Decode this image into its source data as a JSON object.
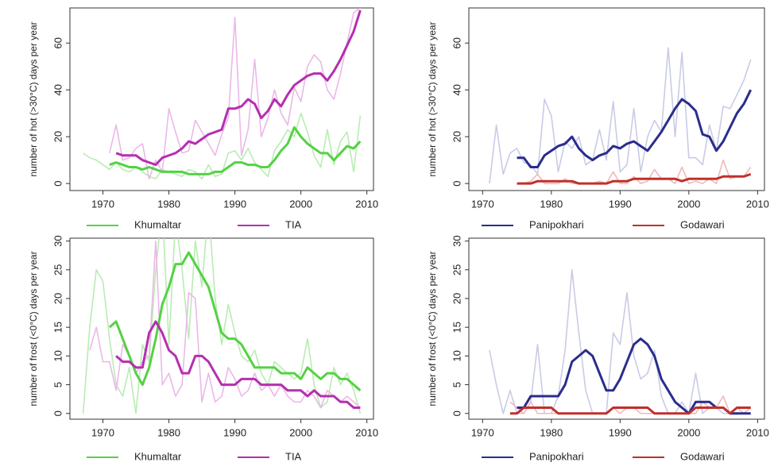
{
  "chart_data": [
    {
      "type": "line",
      "y_label": "number of hot (>30°C) days per year",
      "x": [
        1967,
        1968,
        1969,
        1970,
        1971,
        1972,
        1973,
        1974,
        1975,
        1976,
        1977,
        1978,
        1979,
        1980,
        1981,
        1982,
        1983,
        1984,
        1985,
        1986,
        1987,
        1988,
        1989,
        1990,
        1991,
        1992,
        1993,
        1994,
        1995,
        1996,
        1997,
        1998,
        1999,
        2000,
        2001,
        2002,
        2003,
        2004,
        2005,
        2006,
        2007,
        2008,
        2009
      ],
      "xlim": [
        1965,
        2011
      ],
      "xticks": [
        1970,
        1980,
        1990,
        2000,
        2010
      ],
      "ylim": [
        -3,
        75
      ],
      "yticks": [
        0,
        20,
        40,
        60
      ],
      "series": [
        {
          "name": "Khumaltar",
          "color": "#55d145",
          "raw_color": "#b9ecb2",
          "values": [
            13,
            11,
            10,
            8,
            6,
            9,
            6,
            5,
            7,
            5,
            3,
            2,
            6,
            5,
            4,
            3,
            6,
            5,
            2,
            8,
            3,
            4,
            13,
            14,
            10,
            15,
            9,
            6,
            3,
            14,
            18,
            23,
            20,
            30,
            22,
            12,
            7,
            23,
            8,
            18,
            22,
            5,
            29
          ],
          "smoothed": [
            null,
            null,
            null,
            null,
            8,
            9,
            8,
            7,
            7,
            6,
            7,
            6,
            5,
            5,
            5,
            5,
            4,
            4,
            4,
            4,
            5,
            5,
            7,
            9,
            9,
            8,
            8,
            7,
            7,
            10,
            14,
            17,
            24,
            20,
            17,
            15,
            13,
            13,
            10,
            13,
            16,
            15,
            18
          ]
        },
        {
          "name": "TIA",
          "color": "#b52fb0",
          "raw_color": "#ebb8e8",
          "values": [
            null,
            null,
            null,
            null,
            13,
            25,
            10,
            11,
            15,
            17,
            2,
            10,
            5,
            32,
            22,
            13,
            14,
            27,
            22,
            17,
            12,
            21,
            28,
            71,
            12,
            23,
            53,
            20,
            28,
            40,
            30,
            25,
            41,
            35,
            50,
            55,
            52,
            40,
            36,
            47,
            60,
            73,
            75
          ],
          "smoothed": [
            null,
            null,
            null,
            null,
            null,
            13,
            12,
            12,
            12,
            10,
            9,
            8,
            11,
            12,
            13,
            15,
            18,
            17,
            19,
            21,
            22,
            23,
            32,
            32,
            33,
            36,
            34,
            28,
            31,
            36,
            33,
            38,
            42,
            44,
            46,
            47,
            47,
            44,
            48,
            53,
            59,
            65,
            74
          ]
        }
      ]
    },
    {
      "type": "line",
      "y_label": "number of hot (>30°C) days per year",
      "x": [
        1967,
        1968,
        1969,
        1970,
        1971,
        1972,
        1973,
        1974,
        1975,
        1976,
        1977,
        1978,
        1979,
        1980,
        1981,
        1982,
        1983,
        1984,
        1985,
        1986,
        1987,
        1988,
        1989,
        1990,
        1991,
        1992,
        1993,
        1994,
        1995,
        1996,
        1997,
        1998,
        1999,
        2000,
        2001,
        2002,
        2003,
        2004,
        2005,
        2006,
        2007,
        2008,
        2009
      ],
      "xlim": [
        1968,
        2011
      ],
      "xticks": [
        1970,
        1980,
        1990,
        2000,
        2010
      ],
      "ylim": [
        -3,
        75
      ],
      "yticks": [
        0,
        20,
        40,
        60
      ],
      "series": [
        {
          "name": "Panipokhari",
          "color": "#2a2d8c",
          "raw_color": "#c9cbe6",
          "values": [
            null,
            null,
            null,
            null,
            0,
            25,
            4,
            13,
            15,
            9,
            8,
            4,
            36,
            29,
            5,
            18,
            15,
            20,
            8,
            10,
            23,
            10,
            35,
            5,
            8,
            32,
            5,
            20,
            27,
            22,
            58,
            20,
            56,
            11,
            11,
            8,
            25,
            14,
            33,
            32,
            38,
            44,
            53
          ],
          "smoothed": [
            null,
            null,
            null,
            null,
            null,
            null,
            null,
            null,
            11,
            11,
            7,
            7,
            12,
            14,
            16,
            17,
            20,
            15,
            12,
            10,
            12,
            13,
            16,
            15,
            17,
            18,
            16,
            14,
            18,
            22,
            27,
            32,
            36,
            34,
            31,
            21,
            20,
            14,
            18,
            24,
            30,
            34,
            40
          ]
        },
        {
          "name": "Godawari",
          "color": "#c0302b",
          "raw_color": "#f0b9b6",
          "values": [
            null,
            null,
            null,
            null,
            null,
            null,
            null,
            null,
            0,
            0,
            1,
            4,
            0,
            0,
            0,
            2,
            0,
            0,
            0,
            0,
            1,
            0,
            5,
            0,
            0,
            3,
            0,
            1,
            6,
            2,
            2,
            0,
            7,
            0,
            1,
            0,
            2,
            0,
            10,
            2,
            3,
            3,
            7
          ],
          "smoothed": [
            null,
            null,
            null,
            null,
            null,
            null,
            null,
            null,
            0,
            0,
            0,
            1,
            1,
            1,
            1,
            1,
            1,
            0,
            0,
            0,
            0,
            0,
            1,
            1,
            1,
            2,
            2,
            2,
            2,
            2,
            2,
            2,
            1,
            2,
            2,
            2,
            2,
            2,
            3,
            3,
            3,
            3,
            4
          ]
        }
      ]
    },
    {
      "type": "line",
      "y_label": "number of frost (<0°C) days per year",
      "x": [
        1967,
        1968,
        1969,
        1970,
        1971,
        1972,
        1973,
        1974,
        1975,
        1976,
        1977,
        1978,
        1979,
        1980,
        1981,
        1982,
        1983,
        1984,
        1985,
        1986,
        1987,
        1988,
        1989,
        1990,
        1991,
        1992,
        1993,
        1994,
        1995,
        1996,
        1997,
        1998,
        1999,
        2000,
        2001,
        2002,
        2003,
        2004,
        2005,
        2006,
        2007,
        2008,
        2009
      ],
      "xlim": [
        1965,
        2011
      ],
      "xticks": [
        1970,
        1980,
        1990,
        2000,
        2010
      ],
      "ylim": [
        -1,
        30.5
      ],
      "yticks": [
        0,
        5,
        10,
        15,
        20,
        25,
        30
      ],
      "series": [
        {
          "name": "Khumaltar",
          "color": "#55d145",
          "raw_color": "#b9ecb2",
          "values": [
            0,
            15,
            25,
            23,
            13,
            5,
            3,
            8,
            0,
            12,
            9,
            25,
            36,
            12,
            34,
            25,
            13,
            30,
            22,
            36,
            20,
            12,
            19,
            14,
            10,
            9,
            11,
            7,
            5,
            9,
            8,
            7,
            6,
            7,
            13,
            5,
            1,
            2,
            8,
            5,
            7,
            4,
            0
          ],
          "smoothed": [
            null,
            null,
            null,
            null,
            15,
            16,
            13,
            10,
            7,
            5,
            8,
            13,
            19,
            22,
            26,
            26,
            28,
            26,
            24,
            22,
            18,
            14,
            13,
            13,
            12,
            10,
            8,
            8,
            8,
            8,
            7,
            7,
            7,
            6,
            8,
            7,
            6,
            7,
            7,
            6,
            6,
            5,
            4
          ]
        },
        {
          "name": "TIA",
          "color": "#b52fb0",
          "raw_color": "#ebb8e8",
          "values": [
            null,
            11,
            15,
            9,
            9,
            4,
            12,
            10,
            7,
            9,
            10,
            30,
            5,
            7,
            3,
            5,
            21,
            20,
            2,
            7,
            2,
            3,
            8,
            6,
            3,
            4,
            7,
            4,
            5,
            3,
            5,
            3,
            2,
            2,
            4,
            3,
            1,
            4,
            3,
            2,
            3,
            2,
            1
          ],
          "smoothed": [
            null,
            null,
            null,
            null,
            null,
            10,
            9,
            9,
            8,
            8,
            14,
            16,
            14,
            11,
            10,
            7,
            7,
            10,
            10,
            9,
            7,
            5,
            5,
            5,
            6,
            6,
            6,
            5,
            5,
            5,
            5,
            4,
            4,
            4,
            3,
            4,
            3,
            3,
            3,
            2,
            2,
            1,
            1
          ]
        }
      ]
    },
    {
      "type": "line",
      "y_label": "number of frost (<0°C) days per year",
      "x": [
        1967,
        1968,
        1969,
        1970,
        1971,
        1972,
        1973,
        1974,
        1975,
        1976,
        1977,
        1978,
        1979,
        1980,
        1981,
        1982,
        1983,
        1984,
        1985,
        1986,
        1987,
        1988,
        1989,
        1990,
        1991,
        1992,
        1993,
        1994,
        1995,
        1996,
        1997,
        1998,
        1999,
        2000,
        2001,
        2002,
        2003,
        2004,
        2005,
        2006,
        2007,
        2008,
        2009
      ],
      "xlim": [
        1968,
        2011
      ],
      "xticks": [
        1970,
        1980,
        1990,
        2000,
        2010
      ],
      "ylim": [
        -1,
        30.5
      ],
      "yticks": [
        0,
        5,
        10,
        15,
        20,
        25,
        30
      ],
      "series": [
        {
          "name": "Panipokhari",
          "color": "#2a2d8c",
          "raw_color": "#c9cbe6",
          "values": [
            null,
            null,
            null,
            null,
            11,
            5,
            0,
            4,
            0,
            0,
            2,
            12,
            0,
            0,
            3,
            11,
            25,
            14,
            4,
            0,
            0,
            0,
            14,
            12,
            21,
            10,
            6,
            7,
            11,
            3,
            0,
            0,
            2,
            0,
            7,
            0,
            1,
            1,
            0,
            0,
            0,
            0,
            0
          ],
          "smoothed": [
            null,
            null,
            null,
            null,
            null,
            null,
            null,
            null,
            1,
            1,
            3,
            3,
            3,
            3,
            3,
            5,
            9,
            10,
            11,
            10,
            7,
            4,
            4,
            6,
            9,
            12,
            13,
            12,
            10,
            6,
            4,
            2,
            1,
            0,
            2,
            2,
            2,
            1,
            1,
            0,
            0,
            0,
            0
          ]
        },
        {
          "name": "Godawari",
          "color": "#c0302b",
          "raw_color": "#f0b9b6",
          "values": [
            null,
            null,
            null,
            null,
            null,
            null,
            null,
            2,
            1,
            0,
            2,
            0,
            0,
            0,
            0,
            0,
            0,
            0,
            0,
            0,
            0,
            0,
            1,
            0,
            1,
            1,
            0,
            0,
            0,
            0,
            0,
            0,
            0,
            0,
            0,
            2,
            1,
            1,
            3,
            0,
            1,
            0,
            1
          ],
          "smoothed": [
            null,
            null,
            null,
            null,
            null,
            null,
            null,
            0,
            0,
            1,
            1,
            1,
            1,
            1,
            0,
            0,
            0,
            0,
            0,
            0,
            0,
            0,
            1,
            1,
            1,
            1,
            1,
            1,
            0,
            0,
            0,
            0,
            0,
            0,
            1,
            1,
            1,
            1,
            1,
            0,
            1,
            1,
            1
          ]
        }
      ]
    }
  ]
}
